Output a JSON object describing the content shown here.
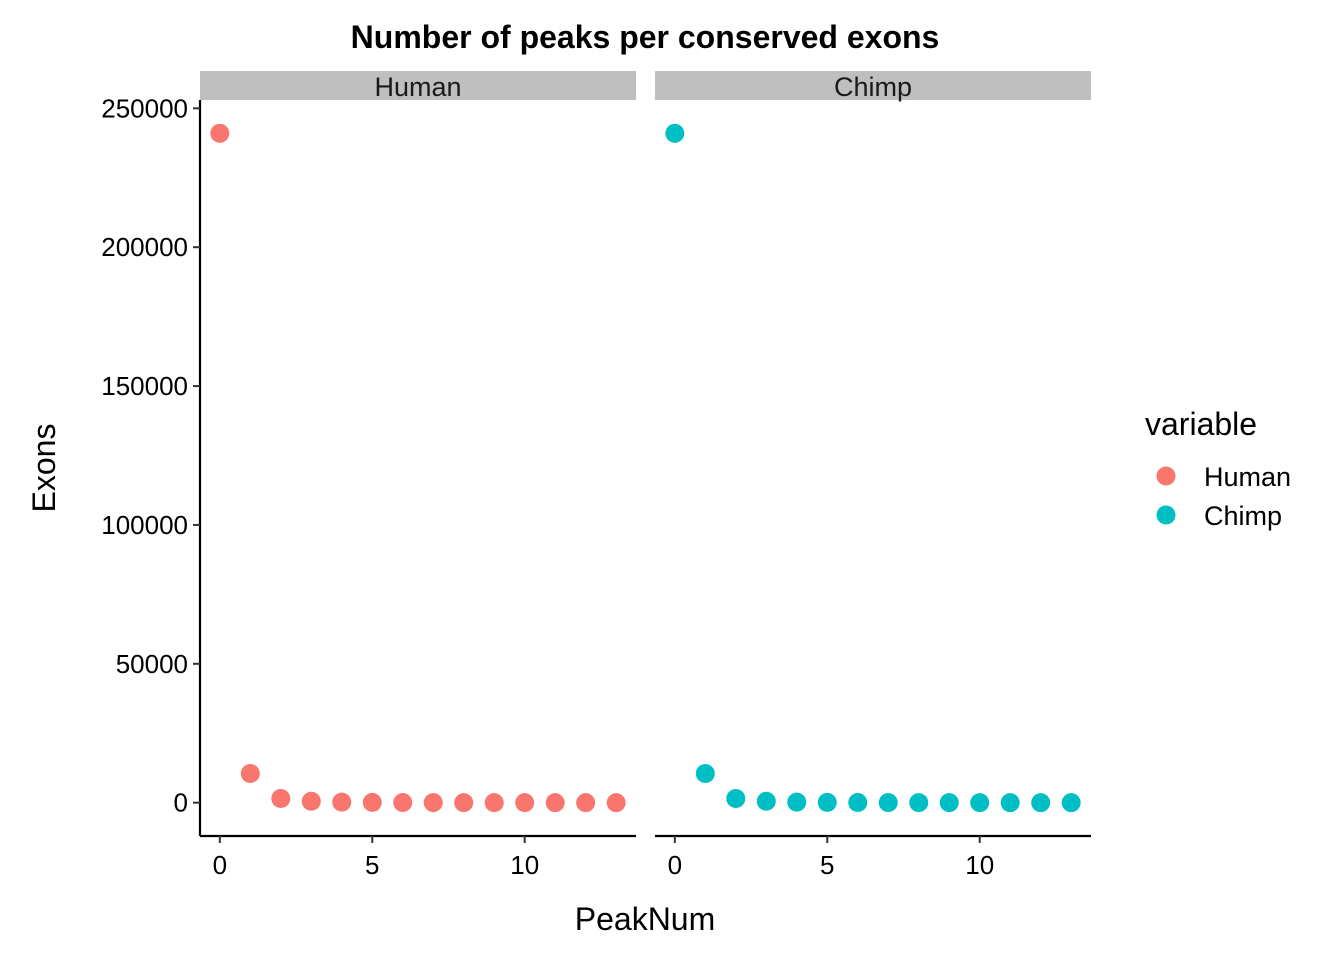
{
  "chart_data": {
    "type": "scatter",
    "title": "Number of peaks per conserved exons",
    "xlabel": "PeakNum",
    "ylabel": "Exons",
    "xlim": [
      -0.65,
      13.65
    ],
    "ylim": [
      -12000,
      253000
    ],
    "x_ticks": [
      0,
      5,
      10
    ],
    "y_ticks": [
      0,
      50000,
      100000,
      150000,
      200000,
      250000
    ],
    "grid": false,
    "legend": {
      "title": "variable",
      "placement": "right"
    },
    "panels": [
      {
        "name": "Human",
        "color": "#F8766D"
      },
      {
        "name": "Chimp",
        "color": "#00BFC4"
      }
    ],
    "x": [
      0,
      1,
      2,
      3,
      4,
      5,
      6,
      7,
      8,
      9,
      10,
      11,
      12,
      13
    ],
    "series": [
      {
        "name": "Human",
        "color": "#F8766D",
        "values": [
          241000,
          10500,
          1500,
          500,
          200,
          100,
          50,
          30,
          20,
          10,
          5,
          3,
          2,
          1
        ]
      },
      {
        "name": "Chimp",
        "color": "#00BFC4",
        "values": [
          241000,
          10500,
          1500,
          500,
          200,
          100,
          50,
          30,
          20,
          10,
          5,
          3,
          2,
          1
        ]
      }
    ]
  }
}
